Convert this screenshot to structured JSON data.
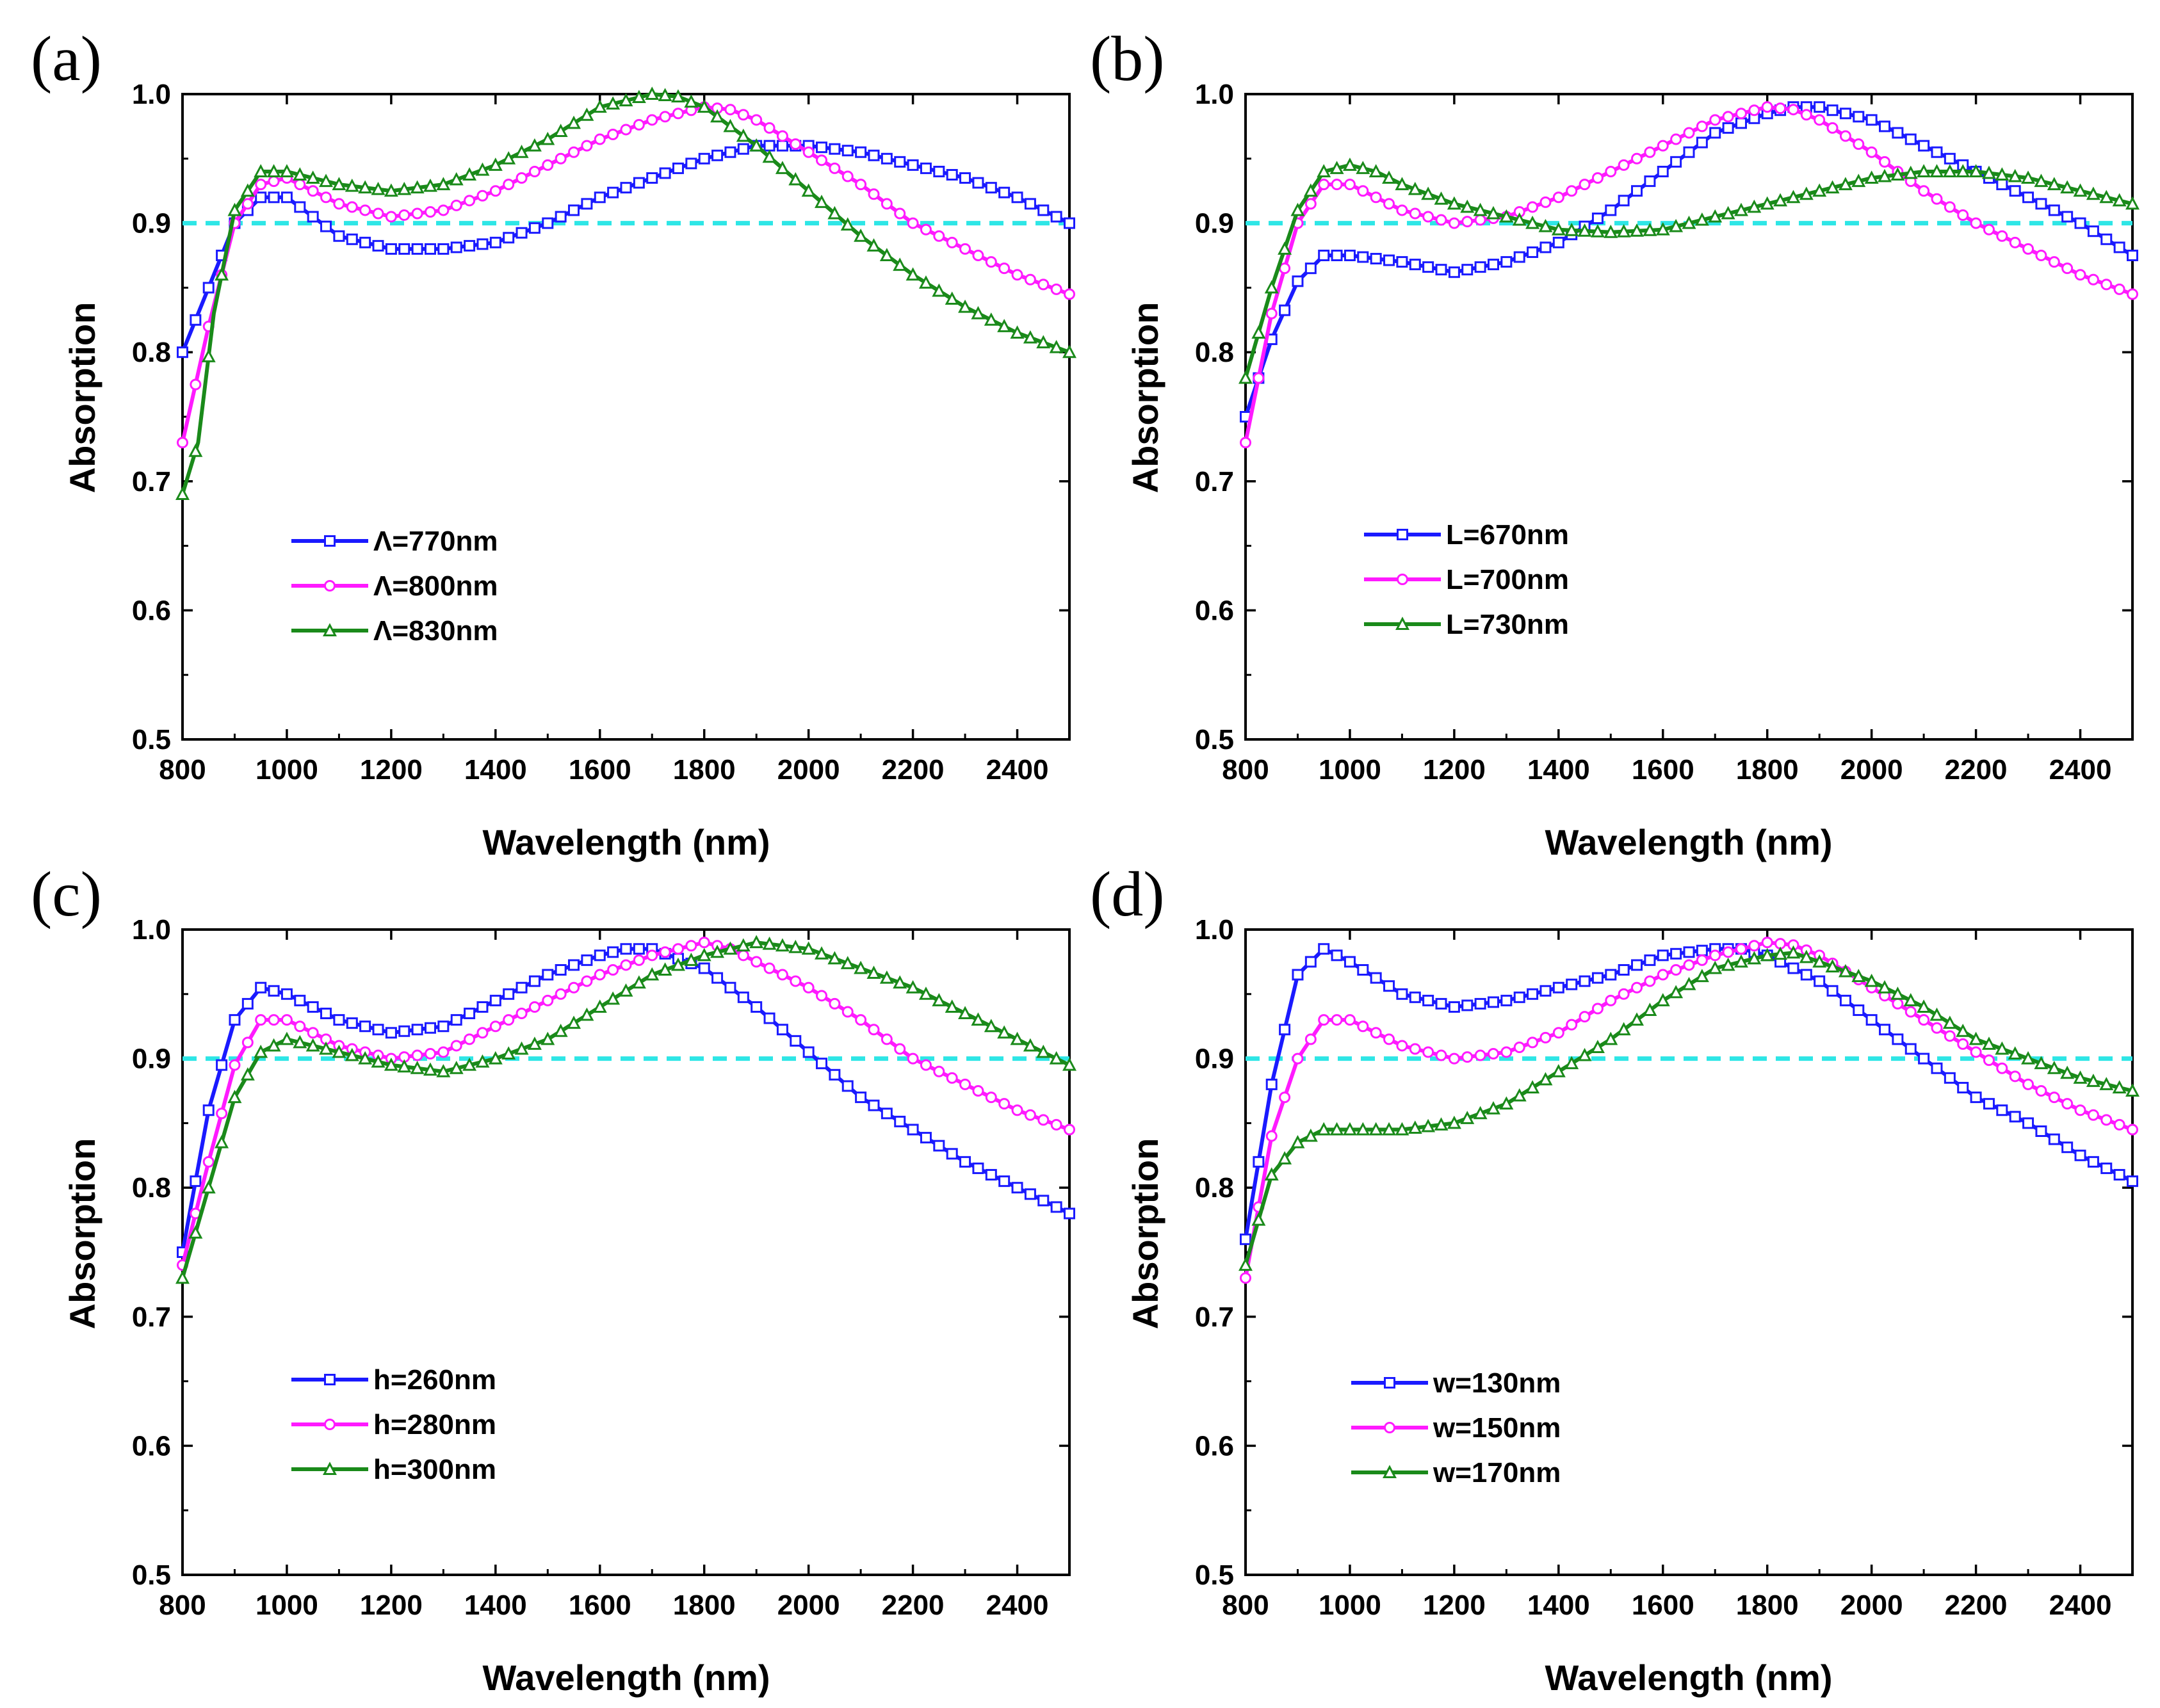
{
  "chart_data": [
    {
      "type": "line",
      "label": "(a)",
      "xlabel": "Wavelength (nm)",
      "ylabel": "Absorption",
      "xlim": [
        800,
        2500
      ],
      "ylim": [
        0.5,
        1.0
      ],
      "xticks": [
        "800",
        "1000",
        "1200",
        "1400",
        "1600",
        "1800",
        "2000",
        "2200",
        "2400"
      ],
      "yticks": [
        "0.5",
        "0.6",
        "0.7",
        "0.8",
        "0.9",
        "1.0"
      ],
      "reference_line": {
        "y": 0.9,
        "color": "#2ee6e6",
        "style": "dashed"
      },
      "legend_position": "lower-left",
      "series": [
        {
          "name": "Λ=770nm",
          "color": "#1a1aff",
          "marker": "square",
          "x": [
            800,
            850,
            900,
            950,
            1000,
            1100,
            1200,
            1300,
            1400,
            1500,
            1600,
            1700,
            1800,
            1900,
            2000,
            2100,
            2200,
            2300,
            2400,
            2500
          ],
          "y": [
            0.8,
            0.85,
            0.9,
            0.92,
            0.92,
            0.89,
            0.88,
            0.88,
            0.885,
            0.9,
            0.92,
            0.935,
            0.95,
            0.96,
            0.96,
            0.955,
            0.945,
            0.935,
            0.92,
            0.9
          ]
        },
        {
          "name": "Λ=800nm",
          "color": "#ff1aff",
          "marker": "circle",
          "x": [
            800,
            850,
            900,
            950,
            1000,
            1100,
            1200,
            1300,
            1400,
            1500,
            1600,
            1700,
            1800,
            1850,
            1900,
            2000,
            2100,
            2200,
            2300,
            2400,
            2500
          ],
          "y": [
            0.73,
            0.82,
            0.9,
            0.93,
            0.935,
            0.915,
            0.905,
            0.91,
            0.925,
            0.945,
            0.965,
            0.98,
            0.99,
            0.988,
            0.98,
            0.955,
            0.93,
            0.9,
            0.88,
            0.86,
            0.845
          ]
        },
        {
          "name": "Λ=830nm",
          "color": "#1a8a1a",
          "marker": "triangle",
          "x": [
            800,
            830,
            860,
            900,
            950,
            1000,
            1100,
            1200,
            1300,
            1400,
            1500,
            1600,
            1650,
            1700,
            1750,
            1800,
            1900,
            2000,
            2100,
            2200,
            2300,
            2400,
            2500
          ],
          "y": [
            0.69,
            0.73,
            0.83,
            0.91,
            0.94,
            0.94,
            0.93,
            0.925,
            0.93,
            0.945,
            0.965,
            0.99,
            0.995,
            1.0,
            0.998,
            0.99,
            0.96,
            0.925,
            0.89,
            0.86,
            0.835,
            0.815,
            0.8
          ]
        }
      ],
      "legend": [
        "Λ=770nm",
        "Λ=800nm",
        "Λ=830nm"
      ]
    },
    {
      "type": "line",
      "label": "(b)",
      "xlabel": "Wavelength (nm)",
      "ylabel": "Absorption",
      "xlim": [
        800,
        2500
      ],
      "ylim": [
        0.5,
        1.0
      ],
      "xticks": [
        "800",
        "1000",
        "1200",
        "1400",
        "1600",
        "1800",
        "2000",
        "2200",
        "2400"
      ],
      "yticks": [
        "0.5",
        "0.6",
        "0.7",
        "0.8",
        "0.9",
        "1.0"
      ],
      "reference_line": {
        "y": 0.9,
        "color": "#2ee6e6",
        "style": "dashed"
      },
      "legend_position": "lower-left",
      "series": [
        {
          "name": "L=670nm",
          "color": "#1a1aff",
          "marker": "square",
          "x": [
            800,
            850,
            900,
            950,
            1000,
            1100,
            1200,
            1300,
            1400,
            1500,
            1600,
            1700,
            1800,
            1850,
            1900,
            2000,
            2100,
            2200,
            2300,
            2400,
            2500
          ],
          "y": [
            0.75,
            0.81,
            0.855,
            0.875,
            0.875,
            0.87,
            0.862,
            0.87,
            0.885,
            0.91,
            0.94,
            0.97,
            0.985,
            0.99,
            0.99,
            0.98,
            0.96,
            0.94,
            0.92,
            0.9,
            0.875
          ]
        },
        {
          "name": "L=700nm",
          "color": "#ff1aff",
          "marker": "circle",
          "x": [
            800,
            850,
            900,
            950,
            1000,
            1100,
            1200,
            1300,
            1400,
            1500,
            1600,
            1700,
            1800,
            1850,
            1900,
            2000,
            2100,
            2200,
            2300,
            2400,
            2500
          ],
          "y": [
            0.73,
            0.83,
            0.9,
            0.93,
            0.93,
            0.91,
            0.9,
            0.905,
            0.92,
            0.94,
            0.96,
            0.98,
            0.99,
            0.988,
            0.98,
            0.955,
            0.925,
            0.9,
            0.88,
            0.86,
            0.845
          ]
        },
        {
          "name": "L=730nm",
          "color": "#1a8a1a",
          "marker": "triangle",
          "x": [
            800,
            850,
            900,
            950,
            1000,
            1050,
            1100,
            1200,
            1300,
            1400,
            1500,
            1600,
            1700,
            1800,
            1900,
            2000,
            2100,
            2200,
            2300,
            2400,
            2500
          ],
          "y": [
            0.78,
            0.85,
            0.91,
            0.94,
            0.945,
            0.94,
            0.93,
            0.915,
            0.905,
            0.895,
            0.893,
            0.895,
            0.905,
            0.915,
            0.925,
            0.935,
            0.94,
            0.94,
            0.935,
            0.925,
            0.915
          ]
        }
      ],
      "legend": [
        "L=670nm",
        "L=700nm",
        "L=730nm"
      ]
    },
    {
      "type": "line",
      "label": "(c)",
      "xlabel": "Wavelength (nm)",
      "ylabel": "Absorption",
      "xlim": [
        800,
        2500
      ],
      "ylim": [
        0.5,
        1.0
      ],
      "xticks": [
        "800",
        "1000",
        "1200",
        "1400",
        "1600",
        "1800",
        "2000",
        "2200",
        "2400"
      ],
      "yticks": [
        "0.5",
        "0.6",
        "0.7",
        "0.8",
        "0.9",
        "1.0"
      ],
      "reference_line": {
        "y": 0.9,
        "color": "#2ee6e6",
        "style": "dashed"
      },
      "legend_position": "lower-left",
      "series": [
        {
          "name": "h=260nm",
          "color": "#1a1aff",
          "marker": "square",
          "x": [
            800,
            850,
            900,
            950,
            1000,
            1100,
            1200,
            1300,
            1400,
            1500,
            1600,
            1650,
            1700,
            1800,
            1900,
            2000,
            2100,
            2200,
            2300,
            2400,
            2500
          ],
          "y": [
            0.75,
            0.86,
            0.93,
            0.955,
            0.95,
            0.93,
            0.92,
            0.925,
            0.945,
            0.965,
            0.98,
            0.985,
            0.985,
            0.97,
            0.94,
            0.905,
            0.87,
            0.845,
            0.82,
            0.8,
            0.78
          ]
        },
        {
          "name": "h=280nm",
          "color": "#ff1aff",
          "marker": "circle",
          "x": [
            800,
            850,
            900,
            950,
            1000,
            1100,
            1200,
            1300,
            1400,
            1500,
            1600,
            1700,
            1800,
            1850,
            1900,
            2000,
            2100,
            2200,
            2300,
            2400,
            2500
          ],
          "y": [
            0.74,
            0.82,
            0.895,
            0.93,
            0.93,
            0.91,
            0.9,
            0.905,
            0.925,
            0.945,
            0.965,
            0.98,
            0.99,
            0.985,
            0.975,
            0.955,
            0.93,
            0.9,
            0.88,
            0.86,
            0.845
          ]
        },
        {
          "name": "h=300nm",
          "color": "#1a8a1a",
          "marker": "triangle",
          "x": [
            800,
            850,
            900,
            950,
            1000,
            1100,
            1200,
            1300,
            1400,
            1500,
            1600,
            1700,
            1800,
            1850,
            1900,
            2000,
            2100,
            2200,
            2300,
            2400,
            2500
          ],
          "y": [
            0.73,
            0.8,
            0.87,
            0.905,
            0.915,
            0.905,
            0.895,
            0.89,
            0.9,
            0.915,
            0.94,
            0.965,
            0.98,
            0.985,
            0.99,
            0.985,
            0.97,
            0.955,
            0.935,
            0.915,
            0.895
          ]
        }
      ],
      "legend": [
        "h=260nm",
        "h=280nm",
        "h=300nm"
      ]
    },
    {
      "type": "line",
      "label": "(d)",
      "xlabel": "Wavelength (nm)",
      "ylabel": "Absorption",
      "xlim": [
        800,
        2500
      ],
      "ylim": [
        0.5,
        1.0
      ],
      "xticks": [
        "800",
        "1000",
        "1200",
        "1400",
        "1600",
        "1800",
        "2000",
        "2200",
        "2400"
      ],
      "yticks": [
        "0.5",
        "0.6",
        "0.7",
        "0.8",
        "0.9",
        "1.0"
      ],
      "reference_line": {
        "y": 0.9,
        "color": "#2ee6e6",
        "style": "dashed"
      },
      "legend_position": "lower-left",
      "series": [
        {
          "name": "w=130nm",
          "color": "#1a1aff",
          "marker": "square",
          "x": [
            800,
            850,
            900,
            950,
            1000,
            1100,
            1200,
            1300,
            1400,
            1500,
            1600,
            1700,
            1750,
            1800,
            1900,
            2000,
            2100,
            2200,
            2300,
            2400,
            2500
          ],
          "y": [
            0.76,
            0.88,
            0.965,
            0.985,
            0.975,
            0.95,
            0.94,
            0.945,
            0.955,
            0.965,
            0.98,
            0.985,
            0.985,
            0.98,
            0.96,
            0.93,
            0.9,
            0.87,
            0.85,
            0.825,
            0.805
          ]
        },
        {
          "name": "w=150nm",
          "color": "#ff1aff",
          "marker": "circle",
          "x": [
            800,
            850,
            900,
            950,
            1000,
            1100,
            1200,
            1300,
            1400,
            1500,
            1600,
            1700,
            1800,
            1850,
            1900,
            2000,
            2100,
            2200,
            2300,
            2400,
            2500
          ],
          "y": [
            0.73,
            0.84,
            0.9,
            0.93,
            0.93,
            0.91,
            0.9,
            0.905,
            0.92,
            0.945,
            0.965,
            0.98,
            0.99,
            0.988,
            0.98,
            0.955,
            0.93,
            0.905,
            0.88,
            0.86,
            0.845
          ]
        },
        {
          "name": "w=170nm",
          "color": "#1a8a1a",
          "marker": "triangle",
          "x": [
            800,
            850,
            900,
            950,
            1000,
            1100,
            1200,
            1300,
            1400,
            1500,
            1600,
            1700,
            1800,
            1850,
            1900,
            2000,
            2100,
            2200,
            2300,
            2400,
            2500
          ],
          "y": [
            0.74,
            0.81,
            0.835,
            0.845,
            0.845,
            0.845,
            0.85,
            0.865,
            0.89,
            0.915,
            0.945,
            0.97,
            0.98,
            0.982,
            0.975,
            0.96,
            0.94,
            0.915,
            0.9,
            0.885,
            0.875
          ]
        }
      ],
      "legend": [
        "w=130nm",
        "w=150nm",
        "w=170nm"
      ]
    }
  ]
}
